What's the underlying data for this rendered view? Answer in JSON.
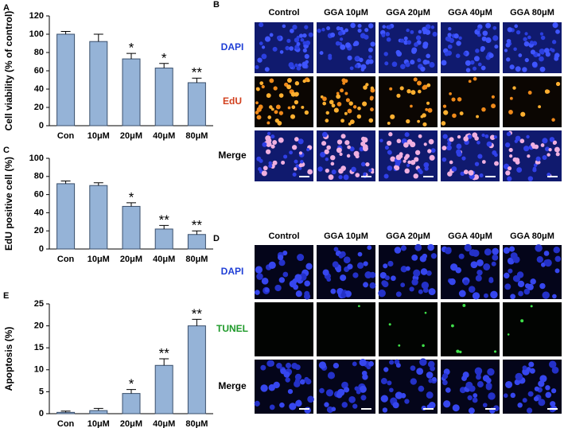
{
  "chart_data": [
    {
      "type": "bar",
      "label": "A",
      "ylabel": "Cell viability (% of control)",
      "categories": [
        "Con",
        "10μM",
        "20μM",
        "40μM",
        "80μM"
      ],
      "values": [
        100,
        92,
        73,
        63,
        47
      ],
      "errors": [
        3,
        8,
        6,
        5,
        5
      ],
      "significance": [
        null,
        null,
        "*",
        "*",
        "**"
      ],
      "color": "#95b3d7",
      "ylim": [
        0,
        120
      ],
      "yticks": [
        0,
        20,
        40,
        60,
        80,
        100,
        120
      ]
    },
    {
      "type": "bar",
      "label": "C",
      "ylabel": "EdU positive cell (%)",
      "categories": [
        "Con",
        "10μM",
        "20μM",
        "40μM",
        "80μM"
      ],
      "values": [
        72,
        70,
        47,
        22,
        16
      ],
      "errors": [
        3,
        3,
        4,
        4,
        4
      ],
      "significance": [
        null,
        null,
        "*",
        "**",
        "**"
      ],
      "color": "#95b3d7",
      "ylim": [
        0,
        100
      ],
      "yticks": [
        0,
        20,
        40,
        60,
        80,
        100
      ]
    },
    {
      "type": "bar",
      "label": "E",
      "ylabel": "Apoptosis (%)",
      "categories": [
        "Con",
        "10μM",
        "20μM",
        "40μM",
        "80μM"
      ],
      "values": [
        0.3,
        0.7,
        4.6,
        11,
        20
      ],
      "errors": [
        0.3,
        0.5,
        0.9,
        1.5,
        1.5
      ],
      "significance": [
        null,
        null,
        "*",
        "**",
        "**"
      ],
      "color": "#95b3d7",
      "ylim": [
        0,
        25
      ],
      "yticks": [
        0,
        5,
        10,
        15,
        20,
        25
      ]
    }
  ],
  "microscopy": [
    {
      "label": "B",
      "columns": [
        "Control",
        "GGA 10μM",
        "GGA 20μM",
        "GGA 40μM",
        "GGA 80μM"
      ],
      "rows": [
        {
          "name": "DAPI",
          "color": "#1f3fd6"
        },
        {
          "name": "EdU",
          "color": "#d2401e"
        },
        {
          "name": "Merge",
          "color": "#000000"
        }
      ]
    },
    {
      "label": "D",
      "columns": [
        "Control",
        "GGA 10μM",
        "GGA 20μM",
        "GGA 40μM",
        "GGA 80μM"
      ],
      "rows": [
        {
          "name": "DAPI",
          "color": "#1f3fd6"
        },
        {
          "name": "TUNEL",
          "color": "#1f9a2a"
        },
        {
          "name": "Merge",
          "color": "#000000"
        }
      ]
    }
  ]
}
